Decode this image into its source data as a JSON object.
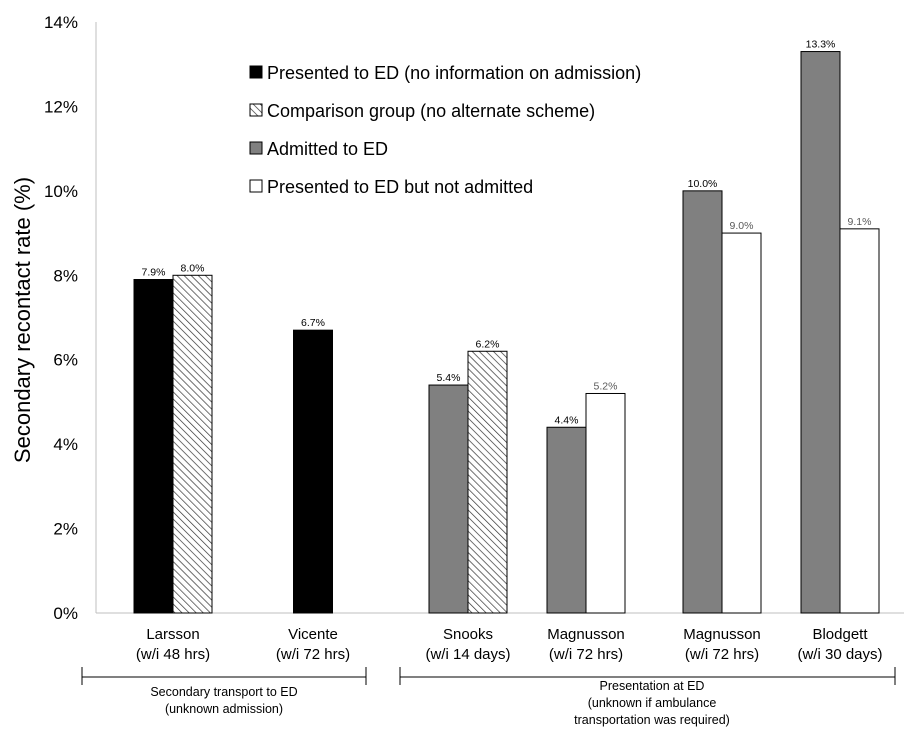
{
  "chart_data": {
    "type": "bar",
    "ylabel": "Secondary recontact rate (%)",
    "xlabel": "",
    "ylim": [
      0,
      14
    ],
    "y_ticks": [
      0,
      2,
      4,
      6,
      8,
      10,
      12,
      14
    ],
    "y_tick_suffix": "%",
    "grid": false,
    "legend_position": "top-center",
    "series": [
      {
        "key": "presented",
        "name": "Presented to ED (no information on admission)",
        "fill": "#000000",
        "pattern": "solid",
        "label_color": "#000000"
      },
      {
        "key": "comparison",
        "name": "Comparison group (no alternate scheme)",
        "fill": "#ffffff",
        "pattern": "hatch",
        "label_color": "#000000"
      },
      {
        "key": "admitted",
        "name": "Admitted to ED",
        "fill": "#808080",
        "pattern": "solid",
        "label_color": "#000000"
      },
      {
        "key": "not_admitted",
        "name": "Presented to ED but not admitted",
        "fill": "#ffffff",
        "pattern": "solid",
        "label_color": "#595959"
      }
    ],
    "categories": [
      {
        "line1": "Larsson",
        "line2": "(w/i 48 hrs)",
        "bars": [
          {
            "series": "presented",
            "value": 7.9,
            "label": "7.9%"
          },
          {
            "series": "comparison",
            "value": 8.0,
            "label": "8.0%"
          }
        ]
      },
      {
        "line1": "Vicente",
        "line2": "(w/i 72 hrs)",
        "bars": [
          {
            "series": "presented",
            "value": 6.7,
            "label": "6.7%"
          }
        ]
      },
      {
        "line1": "Snooks",
        "line2": "(w/i 14 days)",
        "bars": [
          {
            "series": "admitted",
            "value": 5.4,
            "label": "5.4%"
          },
          {
            "series": "comparison",
            "value": 6.2,
            "label": "6.2%"
          }
        ]
      },
      {
        "line1": "Magnusson",
        "line2": "(w/i 72 hrs)",
        "bars": [
          {
            "series": "admitted",
            "value": 4.4,
            "label": "4.4%"
          },
          {
            "series": "not_admitted",
            "value": 5.2,
            "label": "5.2%"
          }
        ]
      },
      {
        "line1": "Magnusson",
        "line2": "(w/i 72 hrs)",
        "bars": [
          {
            "series": "admitted",
            "value": 10.0,
            "label": "10.0%"
          },
          {
            "series": "not_admitted",
            "value": 9.0,
            "label": "9.0%"
          }
        ]
      },
      {
        "line1": "Blodgett",
        "line2": "(w/i 30 days)",
        "bars": [
          {
            "series": "admitted",
            "value": 13.3,
            "label": "13.3%"
          },
          {
            "series": "not_admitted",
            "value": 9.1,
            "label": "9.1%"
          }
        ]
      }
    ],
    "groups": [
      {
        "lines": [
          "Secondary transport to ED",
          "(unknown admission)"
        ],
        "categories": [
          0,
          1
        ]
      },
      {
        "lines": [
          "Presentation at ED",
          "(unknown if ambulance",
          "transportation was required)"
        ],
        "categories": [
          2,
          3,
          4,
          5
        ]
      }
    ]
  }
}
